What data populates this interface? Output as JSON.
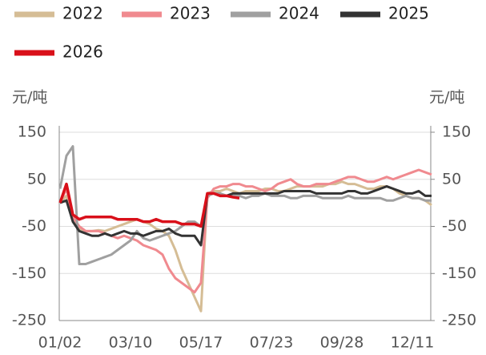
{
  "chart_data": {
    "type": "line",
    "y_label": "元/吨",
    "y2_label": "元/吨",
    "categories": [
      "01/02",
      null,
      null,
      null,
      null,
      null,
      null,
      null,
      null,
      null,
      null,
      "03/10",
      null,
      null,
      null,
      null,
      null,
      null,
      null,
      null,
      null,
      null,
      "05/17",
      null,
      null,
      null,
      null,
      null,
      null,
      null,
      null,
      null,
      null,
      "07/23",
      null,
      null,
      null,
      null,
      null,
      null,
      null,
      null,
      null,
      null,
      "09/28",
      null,
      null,
      null,
      null,
      null,
      null,
      null,
      null,
      null,
      null,
      "12/11",
      null,
      null,
      null
    ],
    "ylim": [
      -250,
      150
    ],
    "yticks": [
      -250,
      -150,
      -50,
      50,
      150
    ],
    "y2lim": [
      -250,
      150
    ],
    "y2ticks": [
      -250,
      -150,
      -50,
      50,
      150
    ],
    "grid": true,
    "series": [
      {
        "name": "2022",
        "color": "#d5bd95",
        "values": [
          0,
          15,
          -40,
          -55,
          -60,
          -60,
          -58,
          -60,
          -55,
          -50,
          -45,
          -40,
          -35,
          -40,
          -45,
          -55,
          -60,
          -70,
          -100,
          -140,
          -170,
          -200,
          -230,
          20,
          25,
          25,
          30,
          25,
          20,
          25,
          25,
          25,
          30,
          30,
          25,
          25,
          30,
          35,
          35,
          35,
          35,
          35,
          40,
          40,
          45,
          40,
          40,
          35,
          30,
          30,
          35,
          35,
          30,
          20,
          15,
          10,
          10,
          5,
          -5
        ]
      },
      {
        "name": "2023",
        "color": "#f08a8f",
        "values": [
          0,
          30,
          -30,
          -50,
          -60,
          -60,
          -60,
          -65,
          -70,
          -75,
          -70,
          -75,
          -80,
          -90,
          -95,
          -100,
          -110,
          -140,
          -160,
          -170,
          -180,
          -190,
          -170,
          10,
          30,
          35,
          35,
          40,
          40,
          35,
          35,
          30,
          25,
          30,
          40,
          45,
          50,
          40,
          35,
          35,
          40,
          40,
          40,
          45,
          50,
          55,
          55,
          50,
          45,
          45,
          50,
          55,
          50,
          55,
          60,
          65,
          70,
          65,
          60
        ]
      },
      {
        "name": "2024",
        "color": "#a0a0a0",
        "values": [
          30,
          100,
          120,
          -130,
          -130,
          -125,
          -120,
          -115,
          -110,
          -100,
          -90,
          -80,
          -60,
          -75,
          -80,
          -75,
          -70,
          -65,
          -60,
          -50,
          -40,
          -40,
          -50,
          15,
          20,
          20,
          15,
          15,
          15,
          10,
          15,
          15,
          20,
          15,
          15,
          15,
          10,
          10,
          15,
          15,
          15,
          10,
          10,
          10,
          10,
          15,
          10,
          10,
          10,
          10,
          10,
          5,
          5,
          10,
          15,
          10,
          10,
          5,
          5
        ]
      },
      {
        "name": "2025",
        "color": "#333333",
        "values": [
          0,
          5,
          -40,
          -60,
          -65,
          -70,
          -70,
          -65,
          -70,
          -65,
          -60,
          -65,
          -65,
          -70,
          -65,
          -60,
          -60,
          -55,
          -65,
          -70,
          -70,
          -70,
          -90,
          20,
          20,
          15,
          15,
          20,
          20,
          20,
          20,
          20,
          20,
          20,
          20,
          25,
          25,
          25,
          25,
          25,
          20,
          20,
          20,
          20,
          20,
          25,
          25,
          20,
          20,
          25,
          30,
          35,
          30,
          25,
          20,
          20,
          25,
          15,
          15
        ]
      },
      {
        "name": "2026",
        "color": "#d9101a",
        "values": [
          0,
          40,
          -25,
          -35,
          -30,
          -30,
          -30,
          -30,
          -30,
          -35,
          -35,
          -35,
          -35,
          -40,
          -40,
          -35,
          -40,
          -40,
          -40,
          -45,
          -45,
          -45,
          -50,
          20,
          20,
          15,
          15,
          12,
          10,
          null,
          null,
          null,
          null,
          null,
          null,
          null,
          null,
          null,
          null,
          null,
          null,
          null,
          null,
          null,
          null,
          null,
          null,
          null,
          null,
          null,
          null,
          null,
          null,
          null,
          null,
          null,
          null,
          null,
          null
        ]
      }
    ]
  }
}
